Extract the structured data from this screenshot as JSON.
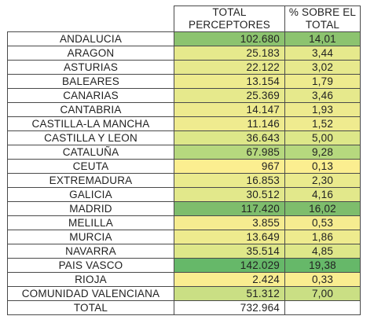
{
  "table": {
    "headers": {
      "total_perceptores_1": "TOTAL",
      "total_perceptores_2": "PERCEPTORES",
      "pct_1": "% SOBRE EL",
      "pct_2": "TOTAL"
    },
    "rows": [
      {
        "region": "ANDALUCIA",
        "perceptores": "102.680",
        "pct": "14,01",
        "color": "#8cc36f"
      },
      {
        "region": "ARAGON",
        "perceptores": "25.183",
        "pct": "3,44",
        "color": "#e6e98c"
      },
      {
        "region": "ASTURIAS",
        "perceptores": "22.122",
        "pct": "3,02",
        "color": "#e7e98d"
      },
      {
        "region": "BALEARES",
        "perceptores": "13.154",
        "pct": "1,79",
        "color": "#eeeb8e"
      },
      {
        "region": "CANARIAS",
        "perceptores": "25.369",
        "pct": "3,46",
        "color": "#e6e98c"
      },
      {
        "region": "CANTABRIA",
        "perceptores": "14.147",
        "pct": "1,93",
        "color": "#edea8e"
      },
      {
        "region": "CASTILLA-LA MANCHA",
        "perceptores": "11.146",
        "pct": "1,52",
        "color": "#efeb8f"
      },
      {
        "region": "CASTILLA Y LEON",
        "perceptores": "36.643",
        "pct": "5,00",
        "color": "#dde789"
      },
      {
        "region": "CATALUÑA",
        "perceptores": "67.985",
        "pct": "9,28",
        "color": "#b6d87e"
      },
      {
        "region": "CEUTA",
        "perceptores": "967",
        "pct": "0,13",
        "color": "#fbee90"
      },
      {
        "region": "EXTREMADURA",
        "perceptores": "16.853",
        "pct": "2,30",
        "color": "#eaea8d"
      },
      {
        "region": "GALICIA",
        "perceptores": "30.512",
        "pct": "4,16",
        "color": "#e2e88b"
      },
      {
        "region": "MADRID",
        "perceptores": "117.420",
        "pct": "16,02",
        "color": "#7ebd6c"
      },
      {
        "region": "MELILLA",
        "perceptores": "3.855",
        "pct": "0,53",
        "color": "#f6ec90"
      },
      {
        "region": "MURCIA",
        "perceptores": "13.649",
        "pct": "1,86",
        "color": "#eeeb8e"
      },
      {
        "region": "NAVARRA",
        "perceptores": "35.514",
        "pct": "4,85",
        "color": "#dee789"
      },
      {
        "region": "PAIS VASCO",
        "perceptores": "142.029",
        "pct": "19,38",
        "color": "#66b869"
      },
      {
        "region": "RIOJA",
        "perceptores": "2.424",
        "pct": "0,33",
        "color": "#f9ed90"
      },
      {
        "region": "COMUNIDAD VALENCIANA",
        "perceptores": "51.312",
        "pct": "7,00",
        "color": "#cadf84"
      }
    ],
    "total": {
      "label": "TOTAL",
      "perceptores": "732.964",
      "pct": ""
    }
  }
}
